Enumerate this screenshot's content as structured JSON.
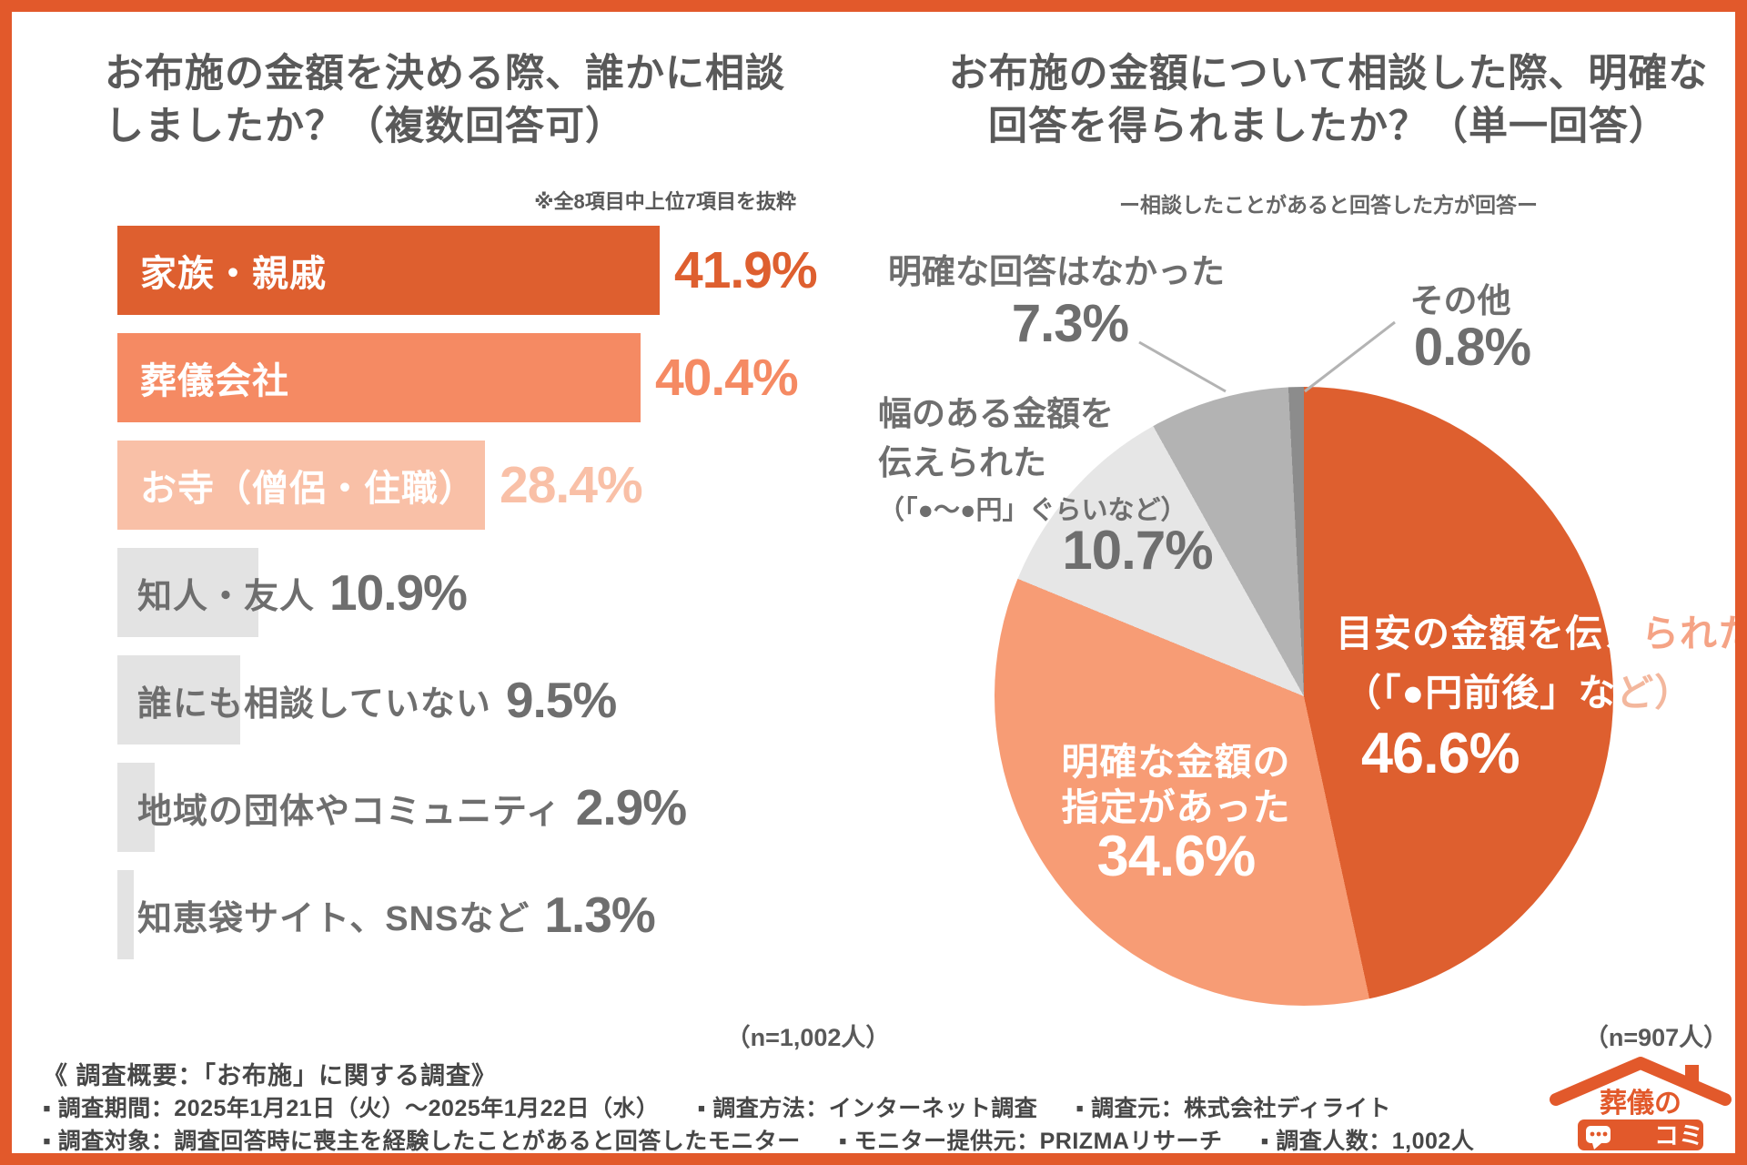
{
  "chart_data": [
    {
      "type": "bar",
      "orientation": "horizontal",
      "title": "お布施の金額を決める際、誰かに相談しましたか？（複数回答可）",
      "note": "※全8項目中上位7項目を抜粋",
      "sample_size": "（n=1,002人）",
      "unit": "%",
      "xlim": [
        0,
        45
      ],
      "categories": [
        "家族・親戚",
        "葬儀会社",
        "お寺（僧侶・住職）",
        "知人・友人",
        "誰にも相談していない",
        "地域の団体やコミュニティ",
        "知恵袋サイト、SNSなど"
      ],
      "values": [
        41.9,
        40.4,
        28.4,
        10.9,
        9.5,
        2.9,
        1.3
      ]
    },
    {
      "type": "pie",
      "title": "お布施の金額について相談した際、明確な回答を得られましたか？（単一回答）",
      "subtitle": "ー相談したことがあると回答した方が回答ー",
      "sample_size": "（n=907人）",
      "start_angle_deg": 0,
      "direction": "clockwise",
      "labels": [
        "目安の金額を伝えられた（「●円前後」など）",
        "明確な金額の指定があった",
        "幅のある金額を伝えられた（「●～●円」ぐらいなど）",
        "明確な回答はなかった",
        "その他"
      ],
      "values": [
        46.6,
        34.6,
        10.7,
        7.3,
        0.8
      ],
      "colors": [
        "#DE5F2F",
        "#F79C75",
        "#E6E6E6",
        "#B3B3B3",
        "#8C8C8C"
      ]
    }
  ],
  "colors": {
    "frame": "#E2592B",
    "dark_orange": "#DE5F2F",
    "salmon": "#F58A63",
    "light_salmon": "#F9C0A7",
    "bar_gray": "#E3E3E3",
    "text_gray": "#6E6E6E",
    "title_gray": "#595959"
  },
  "left_chart": {
    "title_line1": "お布施の金額を決める際、誰かに相談",
    "title_line2": "しましたか？（複数回答可）",
    "note": "※全8項目中上位7項目を抜粋",
    "sample": "（n=1,002人）",
    "max_value": 41.9,
    "bars": [
      {
        "label": "家族・親戚",
        "value": 41.9,
        "value_label": "41.9%",
        "color": "#DE5F2F",
        "value_color": "#DE5F2F",
        "label_inside": true
      },
      {
        "label": "葬儀会社",
        "value": 40.4,
        "value_label": "40.4%",
        "color": "#F58A63",
        "value_color": "#F58A63",
        "label_inside": true
      },
      {
        "label": "お寺（僧侶・住職）",
        "value": 28.4,
        "value_label": "28.4%",
        "color": "#F9C0A7",
        "value_color": "#F9C0A7",
        "label_inside": true
      },
      {
        "label": "知人・友人",
        "value": 10.9,
        "value_label": "10.9%",
        "color": "#E3E3E3",
        "value_color": "#6E6E6E",
        "label_inside": false
      },
      {
        "label": "誰にも相談していない",
        "value": 9.5,
        "value_label": "9.5%",
        "color": "#E3E3E3",
        "value_color": "#6E6E6E",
        "label_inside": false
      },
      {
        "label": "地域の団体やコミュニティ",
        "value": 2.9,
        "value_label": "2.9%",
        "color": "#E3E3E3",
        "value_color": "#6E6E6E",
        "label_inside": false
      },
      {
        "label": "知恵袋サイト、SNSなど",
        "value": 1.3,
        "value_label": "1.3%",
        "color": "#E3E3E3",
        "value_color": "#6E6E6E",
        "label_inside": false
      }
    ]
  },
  "right_chart": {
    "title_line1": "お布施の金額について相談した際、明確な",
    "title_line2": "回答を得られましたか？（単一回答）",
    "subtitle": "ー相談したことがあると回答した方が回答ー",
    "sample": "（n=907人）",
    "callouts": {
      "no_clear": {
        "label": "明確な回答はなかった",
        "value": "7.3%"
      },
      "other": {
        "label": "その他",
        "value": "0.8%"
      },
      "range": {
        "line1": "幅のある金額を",
        "line2": "伝えられた",
        "line3": "（「●～●円」ぐらいなど）",
        "value": "10.7%"
      },
      "approx": {
        "line1_in": "目安の金額を伝え",
        "line1_out": "られた",
        "line2_in": "（「●円前後」な",
        "line2_out": "ど）",
        "value": "46.6%"
      },
      "exact": {
        "line1": "明確な金額の",
        "line2": "指定があった",
        "value": "34.6%"
      }
    }
  },
  "footer": {
    "heading": "《 調査概要：「お布施」に関する調査》",
    "line2": [
      "▪ 調査期間：2025年1月21日（火）～2025年1月22日（水）",
      "▪ 調査方法：インターネット調査",
      "▪ 調査元：株式会社ディライト"
    ],
    "line3": [
      "▪ 調査対象：調査回答時に喪主を経験したことがあると回答したモニター",
      "▪ モニター提供元：PRIZMAリサーチ",
      "▪ 調査人数：1,002人"
    ]
  },
  "logo": {
    "line1": "葬儀の",
    "line2": "コミ"
  }
}
